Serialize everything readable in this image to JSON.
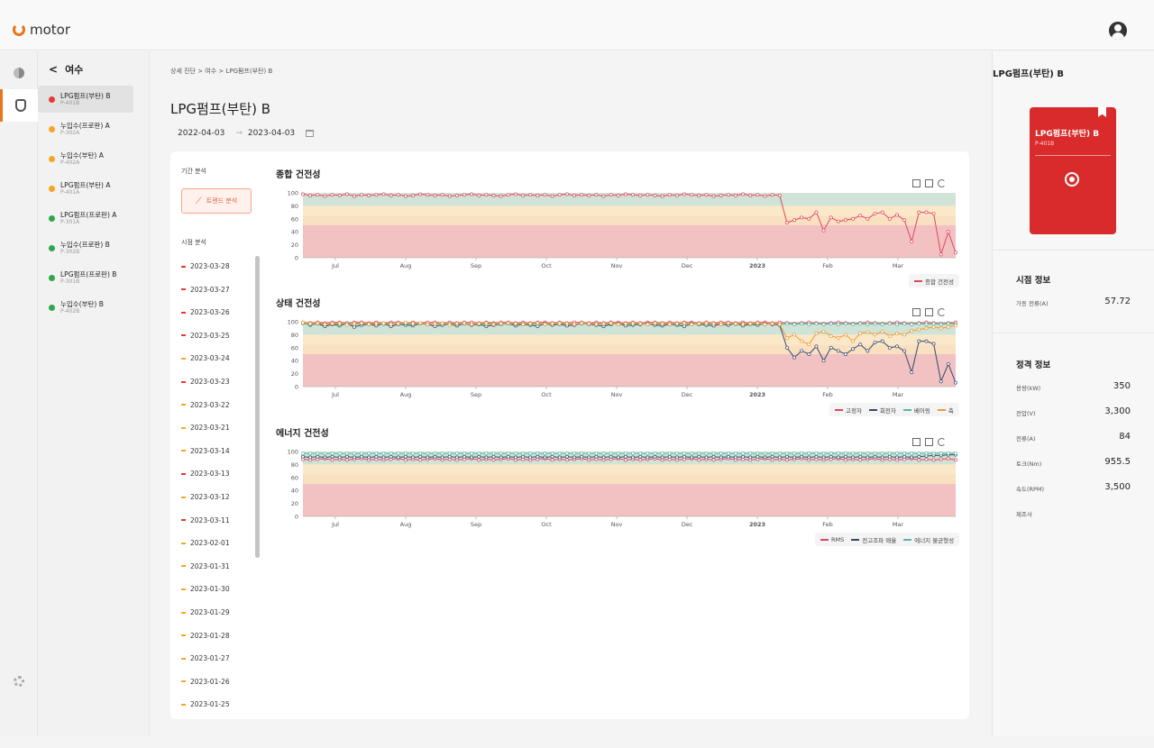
{
  "app": {
    "logo_text": "motor"
  },
  "sidebar": {
    "site_name": "여수",
    "devices": [
      {
        "name": "LPG펌프(부탄) B",
        "code": "P-401B",
        "status_color": "#e53935",
        "selected": true
      },
      {
        "name": "누입수(프로판) A",
        "code": "P-302A",
        "status_color": "#f5a623",
        "selected": false
      },
      {
        "name": "누입수(부탄) A",
        "code": "P-402A",
        "status_color": "#f5a623",
        "selected": false
      },
      {
        "name": "LPG펌프(부탄) A",
        "code": "P-401A",
        "status_color": "#f5a623",
        "selected": false
      },
      {
        "name": "LPG펌프(프로판) A",
        "code": "P-301A",
        "status_color": "#2ea84a",
        "selected": false
      },
      {
        "name": "누입수(프로판) B",
        "code": "P-302B",
        "status_color": "#2ea84a",
        "selected": false
      },
      {
        "name": "LPG펌프(프로판) B",
        "code": "P-301B",
        "status_color": "#2ea84a",
        "selected": false
      },
      {
        "name": "누입수(부탄) B",
        "code": "P-402B",
        "status_color": "#2ea84a",
        "selected": false
      }
    ]
  },
  "main": {
    "breadcrumb": "상세 진단 > 여수 > LPG펌프(부탄) B",
    "title": "LPG펌프(부탄) B",
    "date_from": "2022-04-03",
    "date_arrow": "→",
    "date_to": "2023-04-03",
    "period_label": "기간 분석",
    "trend_button": "트렌드 분석",
    "point_label": "시점 분석",
    "point_dates": [
      {
        "date": "2023-03-28",
        "color": "#e53935"
      },
      {
        "date": "2023-03-27",
        "color": "#e53935"
      },
      {
        "date": "2023-03-26",
        "color": "#e53935"
      },
      {
        "date": "2023-03-25",
        "color": "#e53935"
      },
      {
        "date": "2023-03-24",
        "color": "#f5a623"
      },
      {
        "date": "2023-03-23",
        "color": "#e53935"
      },
      {
        "date": "2023-03-22",
        "color": "#f5a623"
      },
      {
        "date": "2023-03-21",
        "color": "#f5a623"
      },
      {
        "date": "2023-03-14",
        "color": "#f5a623"
      },
      {
        "date": "2023-03-13",
        "color": "#e53935"
      },
      {
        "date": "2023-03-12",
        "color": "#f5a623"
      },
      {
        "date": "2023-03-11",
        "color": "#e53935"
      },
      {
        "date": "2023-02-01",
        "color": "#f5a623"
      },
      {
        "date": "2023-01-31",
        "color": "#f5a623"
      },
      {
        "date": "2023-01-30",
        "color": "#f5a623"
      },
      {
        "date": "2023-01-29",
        "color": "#f5a623"
      },
      {
        "date": "2023-01-28",
        "color": "#f5a623"
      },
      {
        "date": "2023-01-27",
        "color": "#f5a623"
      },
      {
        "date": "2023-01-26",
        "color": "#f5a623"
      },
      {
        "date": "2023-01-25",
        "color": "#f5a623"
      }
    ]
  },
  "chart_data": [
    {
      "type": "line",
      "title": "종합 건전성",
      "ylim": [
        0,
        100
      ],
      "yticks": [
        0,
        20,
        40,
        60,
        80,
        100
      ],
      "xticks": [
        "Jul",
        "Aug",
        "Sep",
        "Oct",
        "Nov",
        "Dec",
        "2023",
        "Feb",
        "Mar"
      ],
      "bands": [
        {
          "from": 0,
          "to": 50,
          "color": "#f2c2c2"
        },
        {
          "from": 50,
          "to": 65,
          "color": "#f9e0c0"
        },
        {
          "from": 65,
          "to": 80,
          "color": "#fbe8c8"
        },
        {
          "from": 80,
          "to": 100,
          "color": "#cfe3d6"
        }
      ],
      "series": [
        {
          "name": "종합 건전성",
          "color": "#e0455f",
          "values": [
            98,
            96,
            97,
            95,
            97,
            96,
            98,
            95,
            97,
            96,
            97,
            98,
            96,
            97,
            95,
            96,
            98,
            97,
            96,
            97,
            95,
            96,
            97,
            98,
            96,
            97,
            96,
            95,
            97,
            98,
            96,
            97,
            96,
            97,
            95,
            97,
            98,
            96,
            97,
            96,
            97,
            95,
            97,
            96,
            98,
            97,
            96,
            97,
            96,
            95,
            97,
            96,
            98,
            97,
            96,
            97,
            95,
            96,
            97,
            96,
            98,
            96,
            97,
            95,
            97,
            96,
            54,
            58,
            62,
            60,
            70,
            42,
            62,
            56,
            58,
            60,
            65,
            60,
            68,
            70,
            60,
            66,
            58,
            25,
            70,
            70,
            68,
            5,
            40,
            8
          ]
        }
      ]
    },
    {
      "type": "line",
      "title": "상태 건전성",
      "ylim": [
        0,
        100
      ],
      "yticks": [
        0,
        20,
        40,
        60,
        80,
        100
      ],
      "xticks": [
        "Jul",
        "Aug",
        "Sep",
        "Oct",
        "Nov",
        "Dec",
        "2023",
        "Feb",
        "Mar"
      ],
      "bands": [
        {
          "from": 0,
          "to": 50,
          "color": "#f2c2c2"
        },
        {
          "from": 50,
          "to": 65,
          "color": "#f9e0c0"
        },
        {
          "from": 65,
          "to": 80,
          "color": "#fbe8c8"
        },
        {
          "from": 80,
          "to": 100,
          "color": "#cfe3d6"
        }
      ],
      "series": [
        {
          "name": "고정자",
          "color": "#e0455f",
          "values": [
            99,
            98,
            99,
            98,
            99,
            99,
            98,
            99,
            99,
            98,
            99,
            98,
            99,
            99,
            98,
            99,
            98,
            99,
            99,
            98,
            99,
            98,
            99,
            99,
            98,
            99,
            98,
            99,
            99,
            98,
            99,
            98,
            99,
            99,
            98,
            99,
            98,
            99,
            99,
            98,
            99,
            98,
            99,
            99,
            98,
            99,
            98,
            99,
            99,
            98,
            99,
            98,
            99,
            99,
            98,
            99,
            98,
            99,
            99,
            98,
            99,
            98,
            99,
            99,
            98,
            99,
            98,
            97,
            98,
            99,
            98,
            97,
            98,
            99,
            98,
            97,
            98,
            99,
            98,
            97,
            98,
            99,
            98,
            97,
            98,
            99,
            98,
            97,
            98,
            99
          ]
        },
        {
          "name": "회전자",
          "color": "#34496e",
          "values": [
            98,
            95,
            97,
            93,
            96,
            94,
            97,
            92,
            95,
            96,
            94,
            97,
            93,
            96,
            95,
            94,
            97,
            96,
            93,
            95,
            96,
            94,
            97,
            95,
            96,
            93,
            95,
            96,
            97,
            94,
            96,
            95,
            93,
            97,
            95,
            96,
            94,
            95,
            97,
            96,
            95,
            93,
            96,
            97,
            94,
            95,
            96,
            97,
            95,
            94,
            96,
            95,
            93,
            97,
            96,
            95,
            94,
            96,
            95,
            97,
            94,
            96,
            95,
            97,
            96,
            95,
            60,
            45,
            55,
            50,
            62,
            40,
            60,
            55,
            50,
            58,
            65,
            55,
            68,
            70,
            60,
            62,
            55,
            22,
            70,
            70,
            66,
            8,
            35,
            6
          ]
        },
        {
          "name": "베어링",
          "color": "#5bb5a2",
          "values": [
            97,
            96,
            97,
            96,
            97,
            96,
            97,
            96,
            97,
            96,
            97,
            96,
            97,
            96,
            97,
            96,
            97,
            96,
            97,
            96,
            97,
            96,
            97,
            96,
            97,
            96,
            97,
            96,
            97,
            96,
            97,
            96,
            97,
            96,
            97,
            96,
            97,
            96,
            97,
            96,
            97,
            96,
            97,
            96,
            97,
            96,
            97,
            96,
            97,
            96,
            97,
            96,
            97,
            96,
            97,
            96,
            97,
            96,
            97,
            96,
            97,
            96,
            97,
            96,
            97,
            96,
            97,
            96,
            97,
            96,
            97,
            96,
            97,
            96,
            97,
            96,
            97,
            96,
            97,
            96,
            97,
            96,
            97,
            96,
            97,
            96,
            97,
            96,
            97,
            96
          ]
        },
        {
          "name": "축",
          "color": "#f09a2e",
          "values": [
            99,
            97,
            98,
            96,
            97,
            98,
            95,
            97,
            98,
            96,
            97,
            98,
            96,
            97,
            99,
            97,
            98,
            96,
            97,
            98,
            95,
            97,
            98,
            96,
            97,
            98,
            96,
            97,
            98,
            97,
            96,
            97,
            98,
            96,
            97,
            98,
            97,
            96,
            98,
            97,
            96,
            97,
            98,
            96,
            97,
            98,
            97,
            96,
            98,
            97,
            96,
            97,
            98,
            96,
            97,
            98,
            97,
            96,
            98,
            97,
            96,
            97,
            98,
            96,
            97,
            96,
            75,
            80,
            70,
            65,
            82,
            85,
            78,
            75,
            80,
            70,
            82,
            84,
            80,
            85,
            78,
            82,
            80,
            86,
            88,
            90,
            92,
            90,
            92,
            94
          ]
        }
      ]
    },
    {
      "type": "line",
      "title": "에너지 건전성",
      "ylim": [
        0,
        100
      ],
      "yticks": [
        0,
        20,
        40,
        60,
        80,
        100
      ],
      "xticks": [
        "Jul",
        "Aug",
        "Sep",
        "Oct",
        "Nov",
        "Dec",
        "2023",
        "Feb",
        "Mar"
      ],
      "bands": [
        {
          "from": 0,
          "to": 50,
          "color": "#f2c2c2"
        },
        {
          "from": 50,
          "to": 65,
          "color": "#f9e0c0"
        },
        {
          "from": 65,
          "to": 80,
          "color": "#fbe8c8"
        },
        {
          "from": 80,
          "to": 100,
          "color": "#cfe3d6"
        }
      ],
      "series": [
        {
          "name": "RMS",
          "color": "#e0455f",
          "values": [
            88,
            87,
            88,
            89,
            87,
            88,
            87,
            88,
            89,
            87,
            88,
            87,
            88,
            89,
            87,
            88,
            87,
            88,
            89,
            87,
            88,
            87,
            88,
            89,
            87,
            88,
            87,
            88,
            89,
            87,
            88,
            87,
            88,
            89,
            87,
            88,
            87,
            88,
            89,
            87,
            88,
            87,
            88,
            89,
            87,
            88,
            87,
            88,
            89,
            87,
            88,
            87,
            88,
            89,
            87,
            88,
            87,
            88,
            89,
            87,
            88,
            87,
            88,
            89,
            87,
            88,
            87,
            88,
            89,
            87,
            88,
            87,
            88,
            89,
            87,
            88,
            87,
            88,
            89,
            87,
            88,
            87,
            88,
            89,
            87,
            88,
            87,
            88,
            89,
            87
          ]
        },
        {
          "name": "전고조파 왜율",
          "color": "#34496e",
          "values": [
            92,
            91,
            92,
            91,
            92,
            91,
            92,
            91,
            92,
            91,
            92,
            91,
            92,
            91,
            92,
            91,
            92,
            91,
            92,
            91,
            92,
            91,
            92,
            91,
            92,
            91,
            92,
            91,
            92,
            91,
            92,
            91,
            92,
            91,
            92,
            91,
            92,
            91,
            92,
            91,
            92,
            91,
            92,
            91,
            92,
            91,
            92,
            91,
            92,
            91,
            92,
            91,
            92,
            91,
            92,
            91,
            92,
            91,
            92,
            91,
            92,
            91,
            92,
            91,
            92,
            91,
            92,
            91,
            92,
            91,
            92,
            91,
            92,
            91,
            92,
            91,
            92,
            91,
            92,
            91,
            92,
            91,
            92,
            91,
            92,
            93,
            94,
            94,
            95,
            95
          ]
        },
        {
          "name": "에너지 불균형성",
          "color": "#5bb5a2",
          "values": [
            97,
            97,
            97,
            97,
            97,
            97,
            97,
            97,
            97,
            97,
            97,
            97,
            97,
            97,
            97,
            97,
            97,
            97,
            97,
            97,
            97,
            97,
            97,
            97,
            97,
            97,
            97,
            97,
            97,
            97,
            97,
            97,
            97,
            97,
            97,
            97,
            97,
            97,
            97,
            97,
            97,
            97,
            97,
            97,
            97,
            97,
            97,
            97,
            97,
            97,
            97,
            97,
            97,
            97,
            97,
            97,
            97,
            97,
            97,
            97,
            97,
            97,
            97,
            97,
            97,
            97,
            97,
            97,
            97,
            97,
            97,
            97,
            97,
            97,
            97,
            97,
            97,
            97,
            97,
            97,
            97,
            97,
            97,
            97,
            97,
            97,
            97,
            97,
            97,
            97
          ]
        }
      ]
    }
  ],
  "right": {
    "title": "LPG펌프(부탄) B",
    "card_name": "LPG펌프(부탄) B",
    "card_code": "P-401B",
    "card_color": "#d92b2b",
    "time_info_title": "시점 정보",
    "time_info": [
      {
        "label": "가동 전류(A)",
        "value": "57.72"
      }
    ],
    "rating_title": "정격 정보",
    "ratings": [
      {
        "label": "용량(kW)",
        "value": "350"
      },
      {
        "label": "전압(V)",
        "value": "3,300"
      },
      {
        "label": "전류(A)",
        "value": "84"
      },
      {
        "label": "토크(Nm)",
        "value": "955.5"
      },
      {
        "label": "속도(RPM)",
        "value": "3,500"
      },
      {
        "label": "제조사",
        "value": ""
      }
    ]
  }
}
